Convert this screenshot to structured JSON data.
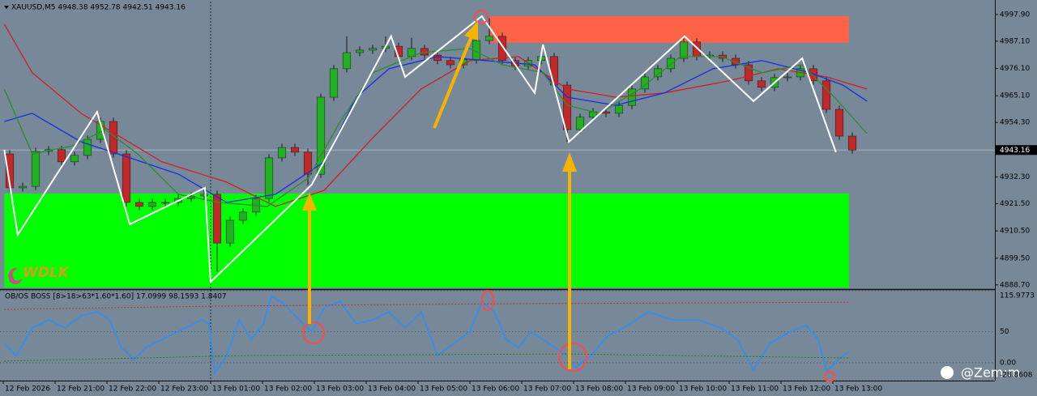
{
  "chart_data": [
    {
      "type": "candlestick",
      "title": "XAUUSD,M5  4948.38 4952.78 4942.51 4943.16",
      "watermark": "WDLK",
      "up_color": "#22b022",
      "down_color": "#c0282a",
      "wick_color": "#1a1a1a",
      "xlim": [
        -0.0625,
        19.125
      ],
      "ylim": [
        4887.0,
        5003.1
      ],
      "yticks": [
        {
          "value": 4997.9,
          "label": "4997.90"
        },
        {
          "value": 4987.1,
          "label": "4987.10"
        },
        {
          "value": 4976.1,
          "label": "4976.10"
        },
        {
          "value": 4965.1,
          "label": "4965.10"
        },
        {
          "value": 4954.3,
          "label": "4954.30"
        },
        {
          "value": 4943.3,
          "label": "4943.30"
        },
        {
          "value": 4932.3,
          "label": "4932.30"
        },
        {
          "value": 4921.5,
          "label": "4921.50"
        },
        {
          "value": 4910.5,
          "label": "4910.50"
        },
        {
          "value": 4899.5,
          "label": "4899.50"
        },
        {
          "value": 4888.7,
          "label": "4888.70"
        }
      ],
      "last_price": 4943.16,
      "x": [
        0.125,
        0.375,
        0.625,
        0.875,
        1.125,
        1.375,
        1.625,
        1.875,
        2.125,
        2.375,
        2.625,
        2.875,
        3.125,
        3.375,
        3.625,
        3.875,
        4.125,
        4.375,
        4.625,
        4.875,
        5.125,
        5.375,
        5.625,
        5.875,
        6.125,
        6.375,
        6.625,
        6.875,
        7.125,
        7.375,
        7.625,
        7.875,
        8.125,
        8.375,
        8.625,
        8.875,
        9.125,
        9.375,
        9.625,
        9.875,
        10.125,
        10.375,
        10.625,
        10.875,
        11.125,
        11.375,
        11.625,
        11.875,
        12.125,
        12.375,
        12.625,
        12.875,
        13.125,
        13.375,
        13.625,
        13.875,
        14.125,
        14.375,
        14.625,
        14.875,
        15.125,
        15.375,
        15.625,
        15.875,
        16.125,
        16.375
      ],
      "open": [
        4941.6,
        4927.9,
        4928.5,
        4942.6,
        4943.3,
        4938.4,
        4941.0,
        4947.5,
        4954.7,
        4941.6,
        4922.0,
        4920.4,
        4922.0,
        4922.0,
        4923.6,
        4924.6,
        4925.3,
        4905.6,
        4914.8,
        4918.1,
        4923.6,
        4940.0,
        4944.2,
        4942.3,
        4933.4,
        4964.5,
        4976.0,
        4982.5,
        4983.5,
        4984.2,
        4985.1,
        4980.9,
        4984.2,
        4981.5,
        4979.3,
        4977.6,
        4979.6,
        4987.4,
        4989.1,
        4979.3,
        4977.0,
        4979.3,
        4980.9,
        4969.4,
        4951.4,
        4956.4,
        4958.6,
        4958.0,
        4961.2,
        4967.8,
        4972.7,
        4976.0,
        4980.2,
        4986.8,
        4980.9,
        4981.5,
        4980.2,
        4977.6,
        4971.1,
        4968.5,
        4972.4,
        4972.7,
        4976.0,
        4971.1,
        4959.6,
        4948.8
      ],
      "high": [
        4943.1,
        4930.0,
        4944.1,
        4944.8,
        4944.8,
        4942.5,
        4949.0,
        4956.2,
        4956.2,
        4943.1,
        4923.5,
        4923.5,
        4923.5,
        4925.1,
        4926.1,
        4926.8,
        4926.8,
        4916.3,
        4919.6,
        4925.1,
        4941.5,
        4945.7,
        4945.7,
        4943.8,
        4966.0,
        4977.5,
        4989.0,
        4985.0,
        4985.7,
        4989.0,
        4986.6,
        4988.5,
        4985.7,
        4983.0,
        4980.8,
        4981.1,
        4988.9,
        4996.4,
        4990.6,
        4980.8,
        4980.8,
        4982.4,
        4982.4,
        4970.9,
        4957.9,
        4960.1,
        4960.1,
        4962.7,
        4969.3,
        4974.2,
        4977.5,
        4981.7,
        4988.3,
        4988.3,
        4983.0,
        4983.0,
        4981.7,
        4979.1,
        4972.6,
        4973.9,
        4974.2,
        4977.5,
        4977.5,
        4972.6,
        4961.1,
        4950.3
      ],
      "low": [
        4926.4,
        4926.4,
        4927.0,
        4941.1,
        4936.9,
        4936.9,
        4939.5,
        4946.0,
        4940.1,
        4920.5,
        4918.9,
        4918.9,
        4920.5,
        4920.5,
        4922.1,
        4923.1,
        4894.0,
        4904.1,
        4913.3,
        4916.6,
        4922.1,
        4938.5,
        4940.8,
        4929.0,
        4931.9,
        4963.0,
        4974.5,
        4981.0,
        4982.0,
        4982.7,
        4979.4,
        4979.4,
        4980.0,
        4977.8,
        4976.1,
        4976.1,
        4978.1,
        4985.9,
        4977.8,
        4975.5,
        4975.5,
        4977.8,
        4967.9,
        4946.5,
        4949.9,
        4954.9,
        4956.5,
        4956.5,
        4959.7,
        4966.3,
        4971.2,
        4974.5,
        4978.7,
        4979.4,
        4979.4,
        4978.7,
        4976.1,
        4969.6,
        4967.0,
        4967.0,
        4970.9,
        4971.2,
        4969.6,
        4958.1,
        4947.3,
        4941.7
      ],
      "close": [
        4927.9,
        4928.5,
        4942.6,
        4943.3,
        4938.4,
        4941.0,
        4947.5,
        4954.7,
        4941.6,
        4922.0,
        4920.4,
        4922.0,
        4922.0,
        4923.6,
        4924.6,
        4925.3,
        4905.6,
        4914.8,
        4918.1,
        4923.6,
        4940.0,
        4944.2,
        4942.3,
        4933.4,
        4964.5,
        4976.0,
        4982.5,
        4983.5,
        4984.2,
        4985.1,
        4980.9,
        4984.2,
        4981.5,
        4979.3,
        4977.6,
        4979.6,
        4987.4,
        4989.1,
        4979.3,
        4977.0,
        4979.3,
        4980.9,
        4969.4,
        4951.4,
        4956.4,
        4958.6,
        4958.0,
        4961.2,
        4967.8,
        4972.7,
        4976.0,
        4980.2,
        4986.8,
        4980.9,
        4981.5,
        4980.2,
        4977.6,
        4971.1,
        4968.5,
        4972.4,
        4972.7,
        4976.0,
        4971.1,
        4959.6,
        4948.8,
        4943.16
      ],
      "zones": [
        {
          "color": "#00ff00",
          "x": [
            0.02,
            16.31
          ],
          "y": [
            4887.6,
            4925.6
          ]
        },
        {
          "color": "#ff6347",
          "x": [
            9.39,
            16.31
          ],
          "y": [
            4986.5,
            4997.2
          ]
        }
      ],
      "series": [
        {
          "color": "#d02020",
          "x": [
            0.02,
            0.56,
            1.5,
            3.06,
            4.31,
            5.25,
            6.19,
            7.13,
            8.06,
            9.0,
            9.94,
            10.88,
            11.81,
            12.75,
            14.0,
            14.94,
            15.88,
            16.66
          ],
          "values": [
            4994.0,
            4974.4,
            4958.0,
            4938.4,
            4930.2,
            4920.4,
            4926.9,
            4948.2,
            4967.8,
            4979.3,
            4980.9,
            4967.8,
            4964.5,
            4966.2,
            4971.1,
            4976.0,
            4972.7,
            4967.8
          ]
        },
        {
          "color": "#1530e0",
          "x": [
            0.02,
            0.56,
            1.5,
            2.44,
            3.38,
            4.31,
            5.25,
            6.19,
            6.81,
            7.44,
            8.38,
            9.31,
            10.25,
            10.88,
            11.81,
            12.75,
            13.69,
            14.63,
            15.56,
            16.19,
            16.66
          ],
          "values": [
            4954.7,
            4958.0,
            4946.5,
            4940.0,
            4933.4,
            4922.0,
            4925.3,
            4938.4,
            4964.5,
            4976.0,
            4980.9,
            4979.3,
            4977.6,
            4964.5,
            4961.2,
            4966.2,
            4976.0,
            4979.3,
            4974.4,
            4969.4,
            4962.9
          ]
        },
        {
          "color": "#2e8b2e",
          "x": [
            0.02,
            0.56,
            1.34,
            1.97,
            2.59,
            3.38,
            4.16,
            5.09,
            5.88,
            6.5,
            7.13,
            8.06,
            9.0,
            9.63,
            10.41,
            10.88,
            11.5,
            12.28,
            13.06,
            13.84,
            14.63,
            15.41,
            16.03,
            16.66
          ],
          "values": [
            4967.8,
            4941.6,
            4944.9,
            4951.4,
            4941.6,
            4925.3,
            4922.0,
            4920.4,
            4931.8,
            4954.7,
            4974.4,
            4982.5,
            4984.2,
            4977.6,
            4974.4,
            4961.2,
            4958.0,
            4967.8,
            4980.9,
            4980.9,
            4974.4,
            4977.6,
            4964.5,
            4949.8
          ]
        },
        {
          "color": "#ffffff",
          "x": [
            0.02,
            0.28,
            1.81,
            2.44,
            3.89,
            4.0,
            5.95,
            7.48,
            7.75,
            9.23,
            10.25,
            10.41,
            10.91,
            13.14,
            14.47,
            15.41,
            16.06
          ],
          "values": [
            4943.3,
            4908.9,
            4958.6,
            4913.2,
            4927.9,
            4889.9,
            4929.2,
            4989.1,
            4972.7,
            4997.2,
            4966.2,
            4985.8,
            4946.5,
            4989.1,
            4962.9,
            4980.2,
            4942.3
          ]
        }
      ]
    },
    {
      "type": "line",
      "title": "OB/OS BOSS [8>18>63*1.60*1.60] 17.0999 98.1593 1.8407",
      "credit": "@Zem:m",
      "xlim": [
        -0.0625,
        19.125
      ],
      "ylim": [
        -28.8608,
        115.9773
      ],
      "yticks": [
        115.9773,
        50,
        {
          "value": 0,
          "label": "0.00"
        },
        -28.8608
      ],
      "xticks": [
        {
          "value": 0,
          "label": "12 Feb 2026"
        },
        {
          "value": 1,
          "label": "12 Feb 21:00"
        },
        {
          "value": 2,
          "label": "12 Feb 22:00"
        },
        {
          "value": 3,
          "label": "12 Feb 23:00"
        },
        {
          "value": 4,
          "label": "13 Feb 01:00"
        },
        {
          "value": 5,
          "label": "13 Feb 02:00"
        },
        {
          "value": 6,
          "label": "13 Feb 03:00"
        },
        {
          "value": 7,
          "label": "13 Feb 04:00"
        },
        {
          "value": 8,
          "label": "13 Feb 05:00"
        },
        {
          "value": 9,
          "label": "13 Feb 06:00"
        },
        {
          "value": 10,
          "label": "13 Feb 07:00"
        },
        {
          "value": 11,
          "label": "13 Feb 08:00"
        },
        {
          "value": 12,
          "label": "13 Feb 09:00"
        },
        {
          "value": 13,
          "label": "13 Feb 10:00"
        },
        {
          "value": 14,
          "label": "13 Feb 11:00"
        },
        {
          "value": 15,
          "label": "13 Feb 12:00"
        },
        {
          "value": 16,
          "label": "13 Feb 13:00"
        }
      ],
      "series": [
        {
          "color": "#3a8ee6",
          "style": "solid",
          "x": [
            0.02,
            0.25,
            0.56,
            0.88,
            1.19,
            1.5,
            1.81,
            2.05,
            2.28,
            2.52,
            2.75,
            3.06,
            3.53,
            3.84,
            3.97,
            4.08,
            4.31,
            4.55,
            4.78,
            5.02,
            5.17,
            5.41,
            5.64,
            5.95,
            6.19,
            6.5,
            6.81,
            7.13,
            7.44,
            7.75,
            8.06,
            8.38,
            8.69,
            9.0,
            9.23,
            9.47,
            9.7,
            9.94,
            10.17,
            10.41,
            10.88,
            11.03,
            11.34,
            11.66,
            11.97,
            12.44,
            12.91,
            13.38,
            13.84,
            14.16,
            14.47,
            14.78,
            15.17,
            15.48,
            15.72,
            15.88,
            16.11,
            16.31
          ],
          "values": [
            30.8,
            11.5,
            56.4,
            69.2,
            56.4,
            75.6,
            82.1,
            69.2,
            24.4,
            5.1,
            24.4,
            37.2,
            56.4,
            69.2,
            62.8,
            -16.7,
            11.5,
            69.2,
            37.2,
            62.8,
            107.7,
            94.9,
            75.6,
            50.0,
            88.5,
            98.7,
            62.8,
            69.2,
            82.1,
            56.4,
            82.1,
            11.5,
            30.8,
            50.0,
            98.7,
            82.1,
            37.2,
            24.4,
            50.0,
            37.2,
            11.5,
            -7.7,
            11.5,
            43.6,
            56.4,
            82.1,
            69.2,
            69.2,
            56.4,
            37.2,
            -11.5,
            30.8,
            50.0,
            60.3,
            37.2,
            -14.1,
            5.1,
            17.9
          ]
        },
        {
          "color": "#c03030",
          "style": "dotted",
          "x": [
            0.02,
            4.0,
            9.31,
            16.31
          ],
          "values": [
            85.9,
            91.0,
            94.9,
            97.4
          ]
        },
        {
          "color": "#1f7a1f",
          "style": "dotted",
          "x": [
            0.02,
            4.63,
            10.88,
            16.31
          ],
          "values": [
            2.6,
            11.5,
            14.1,
            7.7
          ]
        }
      ]
    }
  ]
}
